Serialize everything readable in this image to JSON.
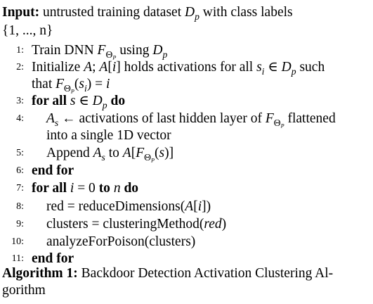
{
  "input": {
    "label": "Input:",
    "line1_text": "untrusted training dataset",
    "line1_var": "D",
    "line1_var_sub": "p",
    "line1_rest": "with class labels",
    "line2": "{1, ..., n}"
  },
  "steps": [
    {
      "num": "1:",
      "parts": [
        "Train DNN ",
        "F",
        "Θ",
        "P",
        " using ",
        "D",
        "p"
      ]
    },
    {
      "num": "2:",
      "a": "Initialize ",
      "b": "A",
      "c": "; ",
      "d": "A",
      "e": "[",
      "f": "i",
      "g": "] holds activations for all ",
      "h": "s",
      "h_sub": "i",
      "i": " ∈ ",
      "j": "D",
      "j_sub": "p",
      "k": " such"
    },
    {
      "num": "",
      "a": "that ",
      "b": "F",
      "c": "(",
      "d": "s",
      "d_sub": "i",
      "e": ") = ",
      "f": "i"
    },
    {
      "num": "3:",
      "kw1": "for all",
      "v": "s",
      "mid": " ∈ ",
      "d": "D",
      "d_sub": "p",
      "kw2": "do"
    },
    {
      "num": "4:",
      "a": "A",
      "a_sub": "s",
      "b": " ← activations of last hidden layer of ",
      "c": "F",
      "d": " flattened"
    },
    {
      "num": "",
      "a": "into a single 1D vector"
    },
    {
      "num": "5:",
      "a": "Append ",
      "b": "A",
      "b_sub": "s",
      "c": " to ",
      "d": "A",
      "e": "[",
      "f": "F",
      "g": "(",
      "h": "s",
      "i": ")]"
    },
    {
      "num": "6:",
      "kw": "end for"
    },
    {
      "num": "7:",
      "kw1": "for all",
      "a": "i",
      "b": " = 0 ",
      "kw2": "to",
      "c": "n",
      "kw3": "do"
    },
    {
      "num": "8:",
      "a": "red = reduceDimensions(",
      "b": "A",
      "c": "[",
      "d": "i",
      "e": "])"
    },
    {
      "num": "9:",
      "a": "clusters = clusteringMethod(",
      "b": "red",
      "c": ")"
    },
    {
      "num": "10:",
      "a": "analyzeForPoison(clusters)"
    },
    {
      "num": "11:",
      "kw": "end for"
    }
  ],
  "caption": {
    "label": "Algorithm 1:",
    "line1": "Backdoor Detection Activation Clustering Al-",
    "line2": "gorithm"
  }
}
